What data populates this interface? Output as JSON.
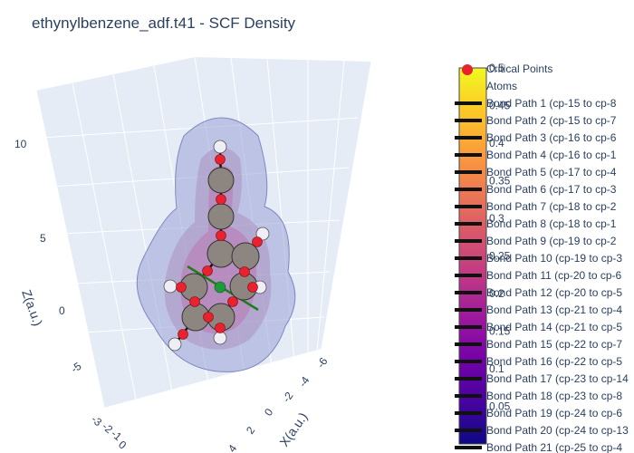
{
  "title": "ethynylbenzene_adf.t41 - SCF Density",
  "axes": {
    "z_title": "Z(a.u.)",
    "x_title": "X(a.u.)",
    "z_ticks": [
      "10",
      "5",
      "0",
      "-5"
    ],
    "x_ticks": [
      "-6",
      "-4",
      "-2",
      "0",
      "2",
      "4"
    ],
    "y_ticks": [
      "-3",
      "-2",
      "-1",
      "0"
    ]
  },
  "legend": {
    "items": [
      "Critical Points",
      "Atoms",
      "Bond Path 1 (cp-15 to cp-8",
      "Bond Path 2 (cp-15 to cp-7",
      "Bond Path 3 (cp-16 to cp-6",
      "Bond Path 4 (cp-16 to cp-1",
      "Bond Path 5 (cp-17 to cp-4",
      "Bond Path 6 (cp-17 to cp-3",
      "Bond Path 7 (cp-18 to cp-2",
      "Bond Path 8 (cp-18 to cp-1",
      "Bond Path 9 (cp-19 to cp-2",
      "Bond Path 10 (cp-19 to cp-3",
      "Bond Path 11 (cp-20 to cp-6",
      "Bond Path 12 (cp-20 to cp-5",
      "Bond Path 13 (cp-21 to cp-4",
      "Bond Path 14 (cp-21 to cp-5",
      "Bond Path 15 (cp-22 to cp-7",
      "Bond Path 16 (cp-22 to cp-5",
      "Bond Path 17 (cp-23 to cp-14",
      "Bond Path 18 (cp-23 to cp-8",
      "Bond Path 19 (cp-24 to cp-6",
      "Bond Path 20 (cp-24 to cp-13",
      "Bond Path 21 (cp-25 to cp-4"
    ]
  },
  "colorbar": {
    "ticks": [
      "0.5",
      "0.45",
      "0.4",
      "0.35",
      "0.3",
      "0.25",
      "0.2",
      "0.15",
      "0.1",
      "0.05"
    ],
    "min": 0,
    "max": 0.5,
    "colors": [
      "#0d0887",
      "#46039f",
      "#7201a8",
      "#9c179e",
      "#bd3786",
      "#d8576b",
      "#ed7953",
      "#fb9f3a",
      "#fdca26",
      "#f0f921"
    ]
  },
  "colors": {
    "critical_point": "#e8222e",
    "atom_carbon": "#8d8680",
    "atom_hydrogen": "#eeeef4",
    "bond": "#111111",
    "axis_x": "#1a7f1a",
    "density_surface": "#9aa3d6",
    "scene_background": "#e5ecf6"
  }
}
